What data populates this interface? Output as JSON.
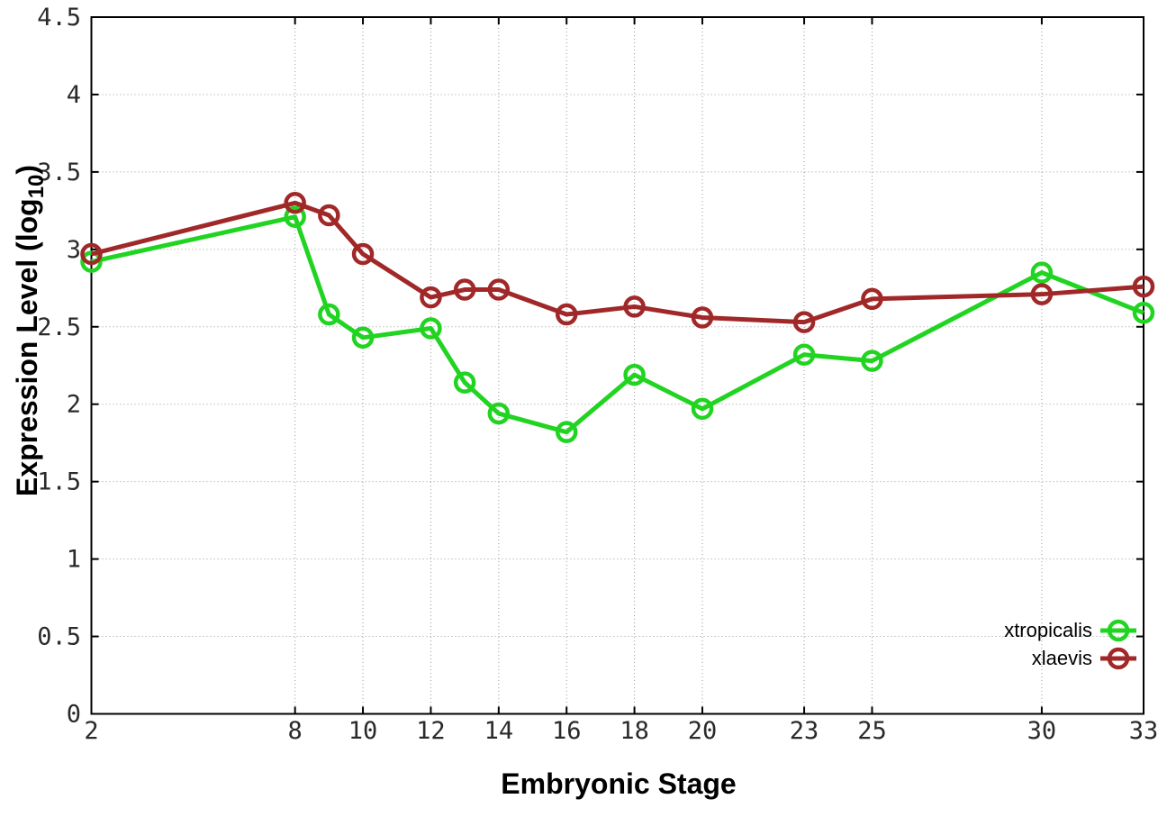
{
  "chart_data": {
    "type": "line",
    "title": "",
    "xlabel": "Embryonic Stage",
    "ylabel": "Expression Level (log10)",
    "ylabel_parts": {
      "prefix": "Expression Level (log",
      "subscript": "10",
      "suffix": ")"
    },
    "xlim": [
      2,
      33
    ],
    "ylim": [
      0,
      4.5
    ],
    "x_ticks": [
      2,
      8,
      10,
      12,
      14,
      16,
      18,
      20,
      23,
      25,
      30,
      33
    ],
    "y_ticks": [
      0,
      0.5,
      1,
      1.5,
      2,
      2.5,
      3,
      3.5,
      4,
      4.5
    ],
    "grid": true,
    "marker": "open-circle",
    "legend_position": "bottom-right",
    "x": [
      2,
      8,
      9,
      10,
      12,
      13,
      14,
      16,
      18,
      20,
      23,
      25,
      30,
      33
    ],
    "series": [
      {
        "name": "xtropicalis",
        "color": "#21d421",
        "values": [
          2.92,
          3.21,
          2.58,
          2.43,
          2.49,
          2.14,
          1.94,
          1.82,
          2.19,
          1.97,
          2.32,
          2.28,
          2.85,
          2.59
        ]
      },
      {
        "name": "xlaevis",
        "color": "#a12828",
        "values": [
          2.97,
          3.3,
          3.22,
          2.97,
          2.69,
          2.74,
          2.74,
          2.58,
          2.63,
          2.56,
          2.53,
          2.68,
          2.71,
          2.76
        ]
      }
    ]
  },
  "figure": {
    "background_color": "#ffffff",
    "axis_color": "#000000",
    "grid_color": "#9a9a9a",
    "tick_label_color": "#2a2a2a"
  }
}
